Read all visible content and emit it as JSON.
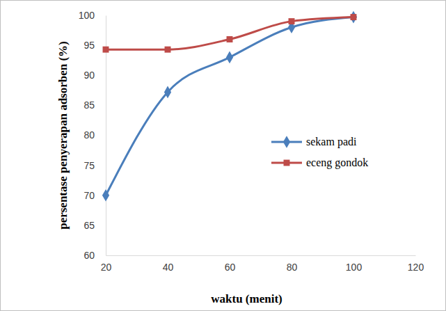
{
  "chart_data": {
    "type": "line",
    "x_label": "waktu (menit)",
    "y_label": "persentase penyerapan adsorben (%)",
    "x": [
      20,
      40,
      60,
      80,
      100
    ],
    "series": [
      {
        "name": "sekam padi",
        "color": "#4a7ebb",
        "marker": "diamond",
        "values": [
          70,
          87.2,
          93,
          98,
          99.7
        ]
      },
      {
        "name": "eceng gondok",
        "color": "#be4b48",
        "marker": "square",
        "values": [
          94.3,
          94.3,
          96,
          99,
          99.7
        ]
      }
    ],
    "xlim": [
      20,
      120
    ],
    "xticks": [
      20,
      40,
      60,
      80,
      100,
      120
    ],
    "ylim": [
      60,
      100
    ],
    "yticks": [
      60,
      65,
      70,
      75,
      80,
      85,
      90,
      95,
      100
    ],
    "grid": false,
    "legend": "right"
  }
}
